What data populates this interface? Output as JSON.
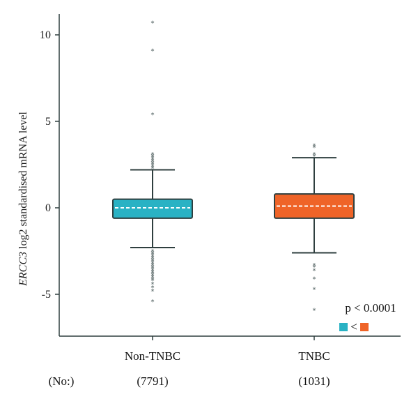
{
  "chart_data": {
    "type": "box",
    "ylabel_gene": "ERCC3",
    "ylabel_rest": " log2 standardised mRNA level",
    "yticks": [
      10,
      5,
      0,
      -5
    ],
    "ytick_labels": [
      "10",
      "5",
      "0",
      "-5"
    ],
    "ylim": [
      -7.4,
      11.1
    ],
    "count_prefix": "(No:)",
    "categories": [
      {
        "name": "Non-TNBC",
        "count_label": "(7791)",
        "color": "#29b2c4",
        "box": {
          "q1": -0.6,
          "median": 0.0,
          "q3": 0.5,
          "whisker_low": -2.3,
          "whisker_high": 2.2
        },
        "outliers": [
          10.7,
          9.1,
          5.4,
          3.1,
          3.0,
          2.9,
          2.8,
          2.7,
          2.6,
          2.5,
          2.4,
          2.3,
          -2.5,
          -2.6,
          -2.7,
          -2.8,
          -2.9,
          -3.0,
          -3.1,
          -3.2,
          -3.3,
          -3.4,
          -3.5,
          -3.6,
          -3.7,
          -3.8,
          -3.9,
          -4.0,
          -4.1,
          -4.2,
          -4.4,
          -4.6,
          -4.8,
          -5.4
        ]
      },
      {
        "name": "TNBC",
        "count_label": "(1031)",
        "color": "#ef6428",
        "box": {
          "q1": -0.6,
          "median": 0.1,
          "q3": 0.8,
          "whisker_low": -2.6,
          "whisker_high": 2.9
        },
        "outliers": [
          3.6,
          3.5,
          3.1,
          3.0,
          -3.3,
          -3.4,
          -3.6,
          -4.1,
          -4.7,
          -5.9
        ]
      }
    ],
    "annotation": {
      "pvalue": "p < 0.0001",
      "comparison_symbol": "<"
    },
    "axis_color": "#2f3f3f",
    "mean_line_color": "#ffffff"
  }
}
